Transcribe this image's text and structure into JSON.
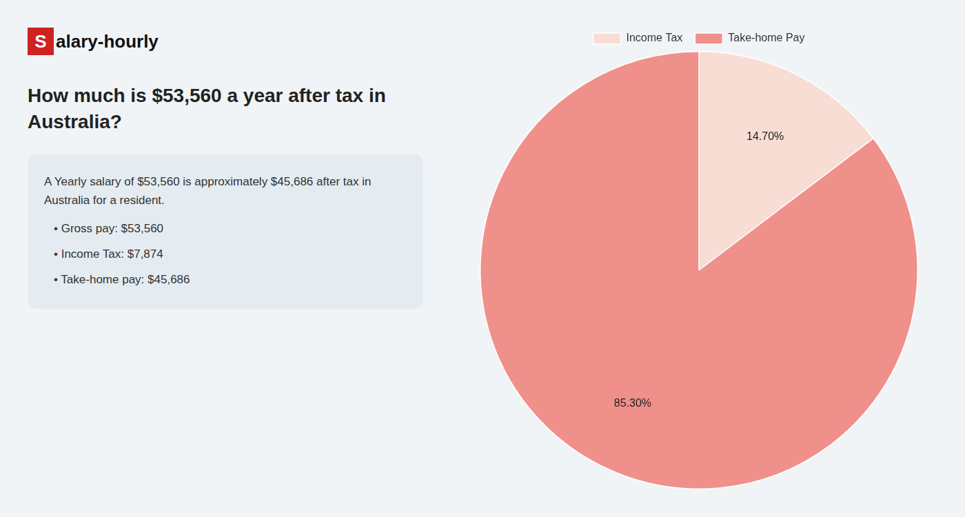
{
  "chart_data": {
    "type": "pie",
    "title": [
      "How much is $53,560 a year after tax in",
      "Australia?"
    ],
    "annotations": [
      "Salary-hourly",
      "A Yearly salary of $53,560 is approximately $45,686 after tax in",
      "Australia for a resident.",
      "• Gross pay: $53,560",
      "• Income Tax: $7,874",
      "• Take-home pay: $45,686"
    ],
    "categories": [
      "Income Tax",
      "Take-home Pay"
    ],
    "values": [
      14.7,
      85.3
    ],
    "value_labels": [
      "14.70%",
      "85.30%"
    ],
    "colors": [
      "#f8ddd5",
      "#f0908a"
    ],
    "data_labels": true,
    "legend": "top"
  }
}
